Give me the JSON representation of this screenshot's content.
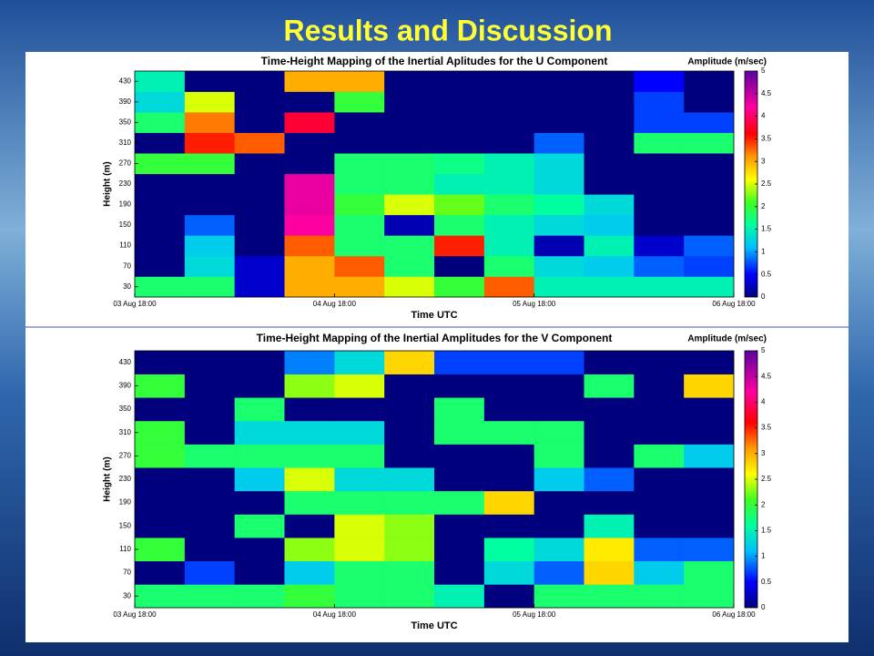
{
  "slide_title": "Results and Discussion",
  "chart_data": [
    {
      "type": "heatmap",
      "title": "Time-Height Mapping of the Inertial Aplitudes for the U Component",
      "xlabel": "Time UTC",
      "ylabel": "Height (m)",
      "colorbar_label": "Amplitude (m/sec)",
      "xlim": [
        0,
        72
      ],
      "xticks": [
        {
          "value": 0,
          "label": "03 Aug 18:00"
        },
        {
          "value": 24,
          "label": "04 Aug 18:00"
        },
        {
          "value": 48,
          "label": "05 Aug 18:00"
        },
        {
          "value": 72,
          "label": "06 Aug 18:00"
        }
      ],
      "xbins": [
        0,
        6,
        12,
        18,
        24,
        30,
        36,
        42,
        48,
        54,
        60,
        66,
        72
      ],
      "y": [
        30,
        70,
        110,
        150,
        190,
        230,
        270,
        310,
        350,
        390,
        430
      ],
      "ylim": [
        10,
        450
      ],
      "yticks": [
        30,
        70,
        110,
        150,
        190,
        230,
        270,
        310,
        350,
        390,
        430
      ],
      "zlim": [
        0,
        5
      ],
      "zticks": [
        0,
        0.5,
        1,
        1.5,
        2,
        2.5,
        3,
        3.5,
        4,
        4.5,
        5
      ],
      "z": [
        [
          1.8,
          1.8,
          0.3,
          3,
          3,
          2.5,
          2,
          3.3,
          1.5,
          1.5,
          1.5,
          1.5
        ],
        [
          0,
          1.3,
          0.3,
          3,
          3.3,
          1.8,
          0,
          1.8,
          1.3,
          1.2,
          0.8,
          0.7
        ],
        [
          0,
          1.2,
          0,
          3.3,
          1.8,
          1.8,
          3.5,
          1.5,
          0.2,
          1.5,
          0.3,
          0.8
        ],
        [
          0,
          0.8,
          0,
          4.2,
          1.8,
          0.2,
          1.8,
          1.5,
          1.3,
          1.2,
          0,
          0
        ],
        [
          0,
          0,
          0,
          4.3,
          2,
          2.5,
          2.2,
          1.8,
          1.6,
          1.3,
          0,
          0
        ],
        [
          0,
          0,
          0,
          4.3,
          1.8,
          1.8,
          1.5,
          1.5,
          1.3,
          0,
          0,
          0
        ],
        [
          2,
          2,
          0,
          0,
          1.8,
          1.8,
          1.7,
          1.5,
          1.3,
          0,
          0,
          0
        ],
        [
          0,
          3.5,
          3.3,
          0,
          0,
          0,
          0,
          0,
          0.8,
          0,
          1.8,
          1.8
        ],
        [
          1.8,
          3.2,
          0,
          3.8,
          0,
          0,
          0,
          0,
          0,
          0,
          0.7,
          0.7
        ],
        [
          1.3,
          2.5,
          0,
          0,
          2,
          0,
          0,
          0,
          0,
          0,
          0.7,
          0
        ],
        [
          1.5,
          0,
          0,
          3,
          3,
          0,
          0,
          0,
          0,
          0,
          0.5,
          0
        ]
      ]
    },
    {
      "type": "heatmap",
      "title": "Time-Height Mapping of the Inertial Amplitudes for the V Component",
      "xlabel": "Time UTC",
      "ylabel": "Height (m)",
      "colorbar_label": "Amplitude (m/sec)",
      "xlim": [
        0,
        72
      ],
      "xticks": [
        {
          "value": 0,
          "label": "03 Aug 18:00"
        },
        {
          "value": 24,
          "label": "04 Aug 18:00"
        },
        {
          "value": 48,
          "label": "05 Aug 18:00"
        },
        {
          "value": 72,
          "label": "06 Aug 18:00"
        }
      ],
      "xbins": [
        0,
        6,
        12,
        18,
        24,
        30,
        36,
        42,
        48,
        54,
        60,
        66,
        72
      ],
      "y": [
        30,
        70,
        110,
        150,
        190,
        230,
        270,
        310,
        350,
        390,
        430
      ],
      "ylim": [
        10,
        450
      ],
      "yticks": [
        30,
        70,
        110,
        150,
        190,
        230,
        270,
        310,
        350,
        390,
        430
      ],
      "zlim": [
        0,
        5
      ],
      "zticks": [
        0,
        0.5,
        1,
        1.5,
        2,
        2.5,
        3,
        3.5,
        4,
        4.5,
        5
      ],
      "z": [
        [
          1.8,
          1.8,
          1.8,
          2,
          1.8,
          1.8,
          1.5,
          0,
          1.8,
          1.8,
          1.8,
          1.8
        ],
        [
          0,
          0.7,
          0,
          1.2,
          1.8,
          1.8,
          0,
          1.3,
          0.8,
          2.8,
          1.2,
          1.8
        ],
        [
          2,
          0,
          0,
          2.3,
          2.5,
          2.3,
          0,
          1.6,
          1.3,
          2.7,
          0.8,
          0.8
        ],
        [
          0,
          0,
          1.8,
          0,
          2.5,
          2.3,
          0,
          0,
          0,
          1.5,
          0,
          0
        ],
        [
          0,
          0,
          0,
          1.8,
          1.8,
          1.8,
          1.8,
          2.8,
          0,
          0,
          0,
          0
        ],
        [
          0,
          0,
          1.2,
          2.5,
          1.3,
          1.3,
          0,
          0,
          1.2,
          0.8,
          0,
          0
        ],
        [
          2,
          1.8,
          1.8,
          1.8,
          1.8,
          0,
          0,
          0,
          1.8,
          0,
          1.8,
          1.2
        ],
        [
          2,
          0,
          1.3,
          1.3,
          1.3,
          0,
          1.8,
          1.8,
          1.8,
          0,
          0,
          0
        ],
        [
          0,
          0,
          1.8,
          0,
          0,
          0,
          1.8,
          0,
          0,
          0,
          0,
          0
        ],
        [
          2,
          0,
          0,
          2.3,
          2.5,
          0,
          0,
          0,
          0,
          1.8,
          0,
          2.8
        ],
        [
          0,
          0,
          0,
          0.9,
          1.3,
          2.8,
          0.7,
          0.7,
          0.7,
          0,
          0,
          0
        ]
      ]
    }
  ]
}
